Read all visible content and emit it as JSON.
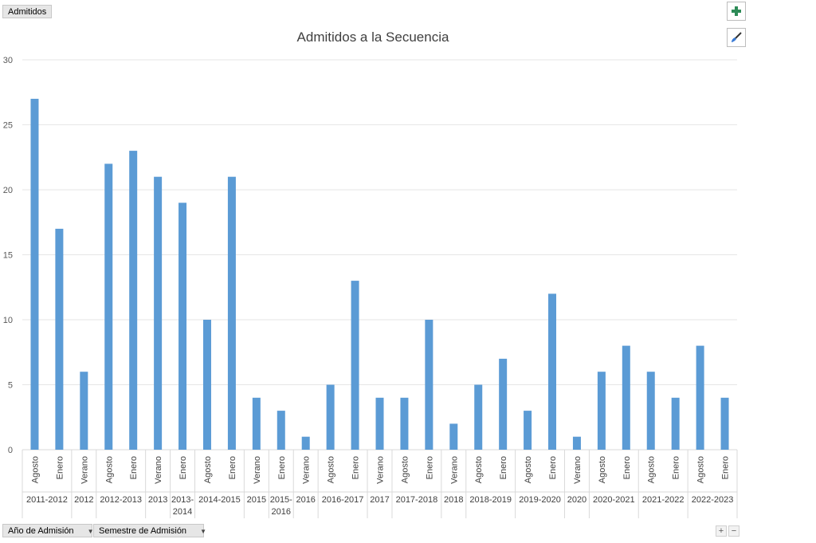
{
  "field_buttons": {
    "value_field": "Admitidos",
    "row_field_1": "Año de Admisión",
    "row_field_2": "Semestre de Admisión"
  },
  "tools": {
    "add_icon": "plus-icon",
    "style_icon": "brush-icon",
    "expand_label": "+",
    "collapse_label": "−"
  },
  "colors": {
    "bar": "#5b9bd5",
    "add": "#2e8b57"
  },
  "chart_data": {
    "type": "bar",
    "title": "Admitidos a la Secuencia",
    "ylim": [
      0,
      30
    ],
    "yticks": [
      0,
      5,
      10,
      15,
      20,
      25,
      30
    ],
    "grid": true,
    "categories": [
      "Agosto",
      "Enero",
      "Verano",
      "Agosto",
      "Enero",
      "Verano",
      "Enero",
      "Agosto",
      "Enero",
      "Verano",
      "Enero",
      "Verano",
      "Agosto",
      "Enero",
      "Verano",
      "Agosto",
      "Enero",
      "Verano",
      "Agosto",
      "Enero",
      "Agosto",
      "Enero",
      "Verano",
      "Agosto",
      "Enero",
      "Agosto",
      "Enero",
      "Agosto",
      "Enero"
    ],
    "values": [
      27,
      17,
      6,
      22,
      23,
      21,
      19,
      10,
      21,
      4,
      3,
      1,
      5,
      13,
      4,
      4,
      10,
      2,
      5,
      7,
      3,
      12,
      1,
      6,
      8,
      6,
      4,
      8,
      4
    ],
    "groups": [
      {
        "label": "2011-2012",
        "count": 2
      },
      {
        "label": "2012",
        "count": 1
      },
      {
        "label": "2012-2013",
        "count": 2
      },
      {
        "label": "2013",
        "count": 1
      },
      {
        "label": "2013-2014",
        "lines": [
          "2013-",
          "2014"
        ],
        "count": 1
      },
      {
        "label": "2014-2015",
        "count": 2
      },
      {
        "label": "2015",
        "count": 1
      },
      {
        "label": "2015-2016",
        "lines": [
          "2015-",
          "2016"
        ],
        "count": 1
      },
      {
        "label": "2016",
        "count": 1
      },
      {
        "label": "2016-2017",
        "count": 2
      },
      {
        "label": "2017",
        "count": 1
      },
      {
        "label": "2017-2018",
        "count": 2
      },
      {
        "label": "2018",
        "count": 1
      },
      {
        "label": "2018-2019",
        "count": 2
      },
      {
        "label": "2019-2020",
        "count": 2
      },
      {
        "label": "2020",
        "count": 1
      },
      {
        "label": "2020-2021",
        "count": 2
      },
      {
        "label": "2021-2022",
        "count": 2
      },
      {
        "label": "2022-2023",
        "count": 2
      }
    ]
  }
}
